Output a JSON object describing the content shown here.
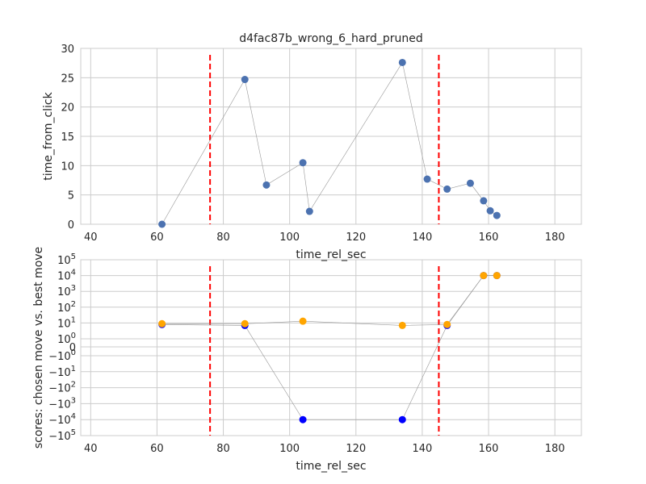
{
  "title": "d4fac87b_wrong_6_hard_pruned",
  "colors": {
    "top_points": "#4c72b0",
    "chosen": "#0000ff",
    "best": "#ffa500",
    "vline": "#ff0000",
    "grid": "#cccccc",
    "connector": "#999999"
  },
  "chart_data": [
    {
      "type": "scatter",
      "title": "d4fac87b_wrong_6_hard_pruned",
      "xlabel": "time_rel_sec",
      "ylabel": "time_from_click",
      "xlim": [
        37,
        188
      ],
      "ylim": [
        0,
        30
      ],
      "grid": true,
      "connected": true,
      "x_ticks": [
        40,
        60,
        80,
        100,
        120,
        140,
        160,
        180
      ],
      "y_ticks": [
        0,
        5,
        10,
        15,
        20,
        25,
        30
      ],
      "vlines": [
        76,
        145
      ],
      "series": [
        {
          "x": [
            61.5,
            86.5,
            93,
            104,
            106,
            134,
            141.5,
            147.5,
            154.5,
            158.5,
            160.5,
            162.5
          ],
          "y": [
            0,
            24.7,
            6.7,
            10.5,
            2.2,
            27.6,
            7.7,
            6.0,
            7.0,
            4.0,
            2.3,
            1.5
          ]
        }
      ]
    },
    {
      "type": "scatter",
      "xlabel": "time_rel_sec",
      "ylabel": "scores: chosen move vs. best move",
      "xlim": [
        37,
        188
      ],
      "yscale": "symlog",
      "grid": true,
      "connected": true,
      "x_ticks": [
        40,
        60,
        80,
        100,
        120,
        140,
        160,
        180
      ],
      "y_ticks": [
        {
          "base": "10",
          "exp": "5",
          "sign": ""
        },
        {
          "base": "10",
          "exp": "4",
          "sign": ""
        },
        {
          "base": "10",
          "exp": "3",
          "sign": ""
        },
        {
          "base": "10",
          "exp": "2",
          "sign": ""
        },
        {
          "base": "10",
          "exp": "1",
          "sign": ""
        },
        {
          "base": "10",
          "exp": "0",
          "sign": ""
        },
        {
          "base": "0",
          "exp": "",
          "sign": ""
        },
        {
          "base": "10",
          "exp": "0",
          "sign": "−"
        },
        {
          "base": "10",
          "exp": "1",
          "sign": "−"
        },
        {
          "base": "10",
          "exp": "2",
          "sign": "−"
        },
        {
          "base": "10",
          "exp": "3",
          "sign": "−"
        },
        {
          "base": "10",
          "exp": "4",
          "sign": "−"
        },
        {
          "base": "10",
          "exp": "5",
          "sign": "−"
        }
      ],
      "vlines": [
        76,
        145
      ],
      "series": [
        {
          "x": [
            61.5,
            86.5,
            104,
            134,
            147.5,
            158.5,
            162.5
          ],
          "y": [
            8,
            7,
            -10000,
            -10000,
            7,
            10000,
            10000
          ]
        },
        {
          "x": [
            61.5,
            86.5,
            104,
            134,
            147.5,
            158.5,
            162.5
          ],
          "y": [
            9,
            9,
            13,
            7,
            8,
            10000,
            10000
          ]
        }
      ]
    }
  ]
}
